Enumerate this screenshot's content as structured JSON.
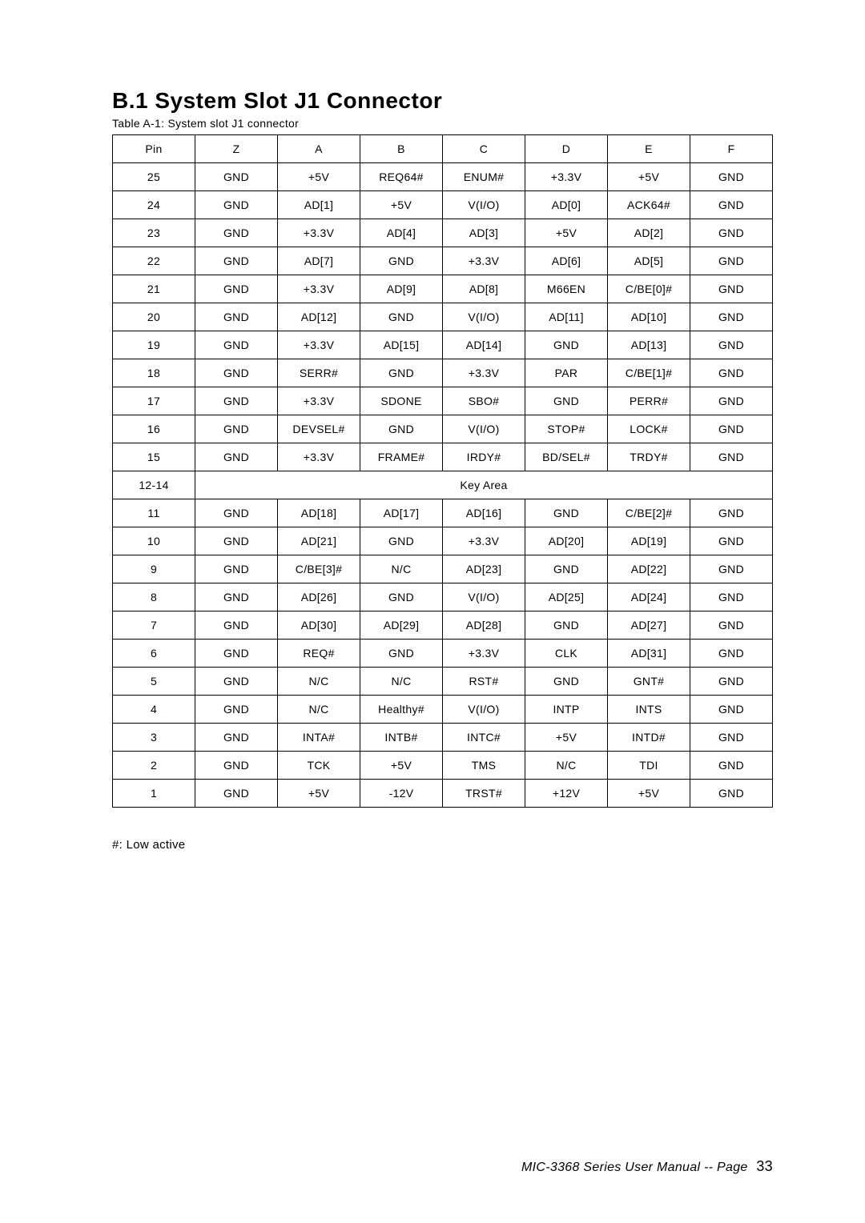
{
  "heading": "B.1 System Slot J1 Connector",
  "table_caption": "Table A-1: System slot J1 connector",
  "columns": [
    "Pin",
    "Z",
    "A",
    "B",
    "C",
    "D",
    "E",
    "F"
  ],
  "rows": [
    [
      "25",
      "GND",
      "+5V",
      "REQ64#",
      "ENUM#",
      "+3.3V",
      "+5V",
      "GND"
    ],
    [
      "24",
      "GND",
      "AD[1]",
      "+5V",
      "V(I/O)",
      "AD[0]",
      "ACK64#",
      "GND"
    ],
    [
      "23",
      "GND",
      "+3.3V",
      "AD[4]",
      "AD[3]",
      "+5V",
      "AD[2]",
      "GND"
    ],
    [
      "22",
      "GND",
      "AD[7]",
      "GND",
      "+3.3V",
      "AD[6]",
      "AD[5]",
      "GND"
    ],
    [
      "21",
      "GND",
      "+3.3V",
      "AD[9]",
      "AD[8]",
      "M66EN",
      "C/BE[0]#",
      "GND"
    ],
    [
      "20",
      "GND",
      "AD[12]",
      "GND",
      "V(I/O)",
      "AD[11]",
      "AD[10]",
      "GND"
    ],
    [
      "19",
      "GND",
      "+3.3V",
      "AD[15]",
      "AD[14]",
      "GND",
      "AD[13]",
      "GND"
    ],
    [
      "18",
      "GND",
      "SERR#",
      "GND",
      "+3.3V",
      "PAR",
      "C/BE[1]#",
      "GND"
    ],
    [
      "17",
      "GND",
      "+3.3V",
      "SDONE",
      "SBO#",
      "GND",
      "PERR#",
      "GND"
    ],
    [
      "16",
      "GND",
      "DEVSEL#",
      "GND",
      "V(I/O)",
      "STOP#",
      "LOCK#",
      "GND"
    ],
    [
      "15",
      "GND",
      "+3.3V",
      "FRAME#",
      "IRDY#",
      "BD/SEL#",
      "TRDY#",
      "GND"
    ]
  ],
  "key_row": {
    "pin": "12-14",
    "label": "Key Area"
  },
  "rows2": [
    [
      "11",
      "GND",
      "AD[18]",
      "AD[17]",
      "AD[16]",
      "GND",
      "C/BE[2]#",
      "GND"
    ],
    [
      "10",
      "GND",
      "AD[21]",
      "GND",
      "+3.3V",
      "AD[20]",
      "AD[19]",
      "GND"
    ],
    [
      "9",
      "GND",
      "C/BE[3]#",
      "N/C",
      "AD[23]",
      "GND",
      "AD[22]",
      "GND"
    ],
    [
      "8",
      "GND",
      "AD[26]",
      "GND",
      "V(I/O)",
      "AD[25]",
      "AD[24]",
      "GND"
    ],
    [
      "7",
      "GND",
      "AD[30]",
      "AD[29]",
      "AD[28]",
      "GND",
      "AD[27]",
      "GND"
    ],
    [
      "6",
      "GND",
      "REQ#",
      "GND",
      "+3.3V",
      "CLK",
      "AD[31]",
      "GND"
    ],
    [
      "5",
      "GND",
      "N/C",
      "N/C",
      "RST#",
      "GND",
      "GNT#",
      "GND"
    ],
    [
      "4",
      "GND",
      "N/C",
      "Healthy#",
      "V(I/O)",
      "INTP",
      "INTS",
      "GND"
    ],
    [
      "3",
      "GND",
      "INTA#",
      "INTB#",
      "INTC#",
      "+5V",
      "INTD#",
      "GND"
    ],
    [
      "2",
      "GND",
      "TCK",
      "+5V",
      "TMS",
      "N/C",
      "TDI",
      "GND"
    ],
    [
      "1",
      "GND",
      "+5V",
      "-12V",
      "TRST#",
      "+12V",
      "+5V",
      "GND"
    ]
  ],
  "footnote": "#: Low active",
  "footer_text": "MIC-3368 Series User Manual -- Page",
  "footer_page": "33"
}
